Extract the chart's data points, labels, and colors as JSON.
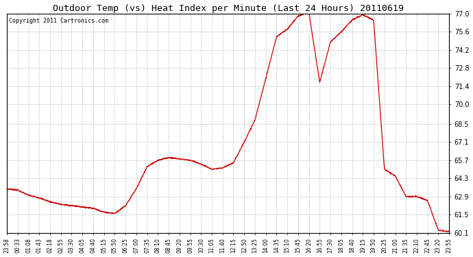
{
  "title": "Outdoor Temp (vs) Heat Index per Minute (Last 24 Hours) 20110619",
  "copyright": "Copyright 2011 Cartronics.com",
  "line_color": "#cc0000",
  "bg_color": "#ffffff",
  "grid_color": "#bbbbbb",
  "ylim": [
    60.1,
    77.0
  ],
  "yticks": [
    60.1,
    61.5,
    62.9,
    64.3,
    65.7,
    67.1,
    68.5,
    70.0,
    71.4,
    72.8,
    74.2,
    75.6,
    77.0
  ],
  "xtick_labels": [
    "23:58",
    "00:33",
    "01:08",
    "01:43",
    "02:18",
    "02:55",
    "03:30",
    "04:05",
    "04:40",
    "05:15",
    "05:50",
    "06:25",
    "07:00",
    "07:35",
    "08:10",
    "08:45",
    "09:20",
    "09:55",
    "10:30",
    "11:05",
    "11:40",
    "12:15",
    "12:50",
    "13:25",
    "14:00",
    "14:35",
    "15:10",
    "15:45",
    "16:20",
    "16:55",
    "17:30",
    "18:05",
    "18:40",
    "19:15",
    "19:50",
    "20:25",
    "21:00",
    "21:35",
    "22:10",
    "22:45",
    "23:20",
    "23:55"
  ],
  "key_x": [
    0,
    1,
    2,
    3,
    4,
    5,
    6,
    7,
    8,
    9,
    10,
    11,
    12,
    13,
    14,
    15,
    16,
    17,
    18,
    19,
    20,
    21,
    22,
    23,
    24,
    25,
    26,
    27,
    28,
    29,
    30,
    31,
    32,
    33,
    34,
    35,
    36,
    37,
    38,
    39,
    40,
    41
  ],
  "key_y": [
    63.5,
    63.4,
    63.0,
    62.8,
    62.5,
    62.3,
    62.2,
    62.1,
    62.0,
    61.7,
    61.6,
    62.2,
    63.5,
    65.2,
    65.7,
    65.9,
    65.8,
    65.7,
    65.4,
    65.0,
    65.1,
    65.5,
    67.1,
    68.8,
    72.0,
    75.2,
    75.8,
    76.8,
    77.1,
    71.7,
    74.8,
    75.6,
    76.5,
    76.9,
    76.5,
    65.0,
    64.5,
    62.9,
    62.9,
    62.6,
    60.3,
    60.2
  ]
}
